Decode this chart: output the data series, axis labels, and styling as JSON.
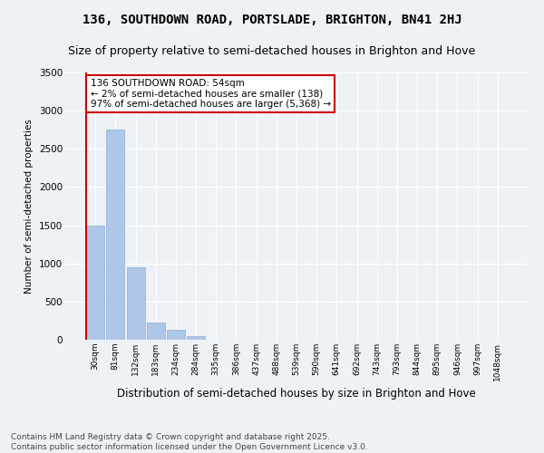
{
  "title": "136, SOUTHDOWN ROAD, PORTSLADE, BRIGHTON, BN41 2HJ",
  "subtitle": "Size of property relative to semi-detached houses in Brighton and Hove",
  "xlabel": "Distribution of semi-detached houses by size in Brighton and Hove",
  "ylabel": "Number of semi-detached properties",
  "categories": [
    "30sqm",
    "81sqm",
    "132sqm",
    "183sqm",
    "234sqm",
    "284sqm",
    "335sqm",
    "386sqm",
    "437sqm",
    "488sqm",
    "539sqm",
    "590sqm",
    "641sqm",
    "692sqm",
    "743sqm",
    "793sqm",
    "844sqm",
    "895sqm",
    "946sqm",
    "997sqm",
    "1048sqm"
  ],
  "values": [
    1500,
    2750,
    950,
    230,
    130,
    45,
    5,
    2,
    1,
    0,
    0,
    0,
    0,
    0,
    0,
    0,
    0,
    0,
    0,
    0,
    0
  ],
  "bar_color": "#aec6e8",
  "bar_edge_color": "#8ab0d0",
  "highlight_bar_index": 0,
  "highlight_color": "#cc0000",
  "annotation_text": "136 SOUTHDOWN ROAD: 54sqm\n← 2% of semi-detached houses are smaller (138)\n97% of semi-detached houses are larger (5,368) →",
  "annotation_box_color": "#cc0000",
  "ylim": [
    0,
    3500
  ],
  "yticks": [
    0,
    500,
    1000,
    1500,
    2000,
    2500,
    3000,
    3500
  ],
  "background_color": "#eef2f7",
  "grid_color": "#ffffff",
  "footer_line1": "Contains HM Land Registry data © Crown copyright and database right 2025.",
  "footer_line2": "Contains public sector information licensed under the Open Government Licence v3.0.",
  "title_fontsize": 10,
  "subtitle_fontsize": 9,
  "annotation_fontsize": 7.5,
  "footer_fontsize": 6.5,
  "ylabel_fontsize": 7.5,
  "xlabel_fontsize": 8.5
}
